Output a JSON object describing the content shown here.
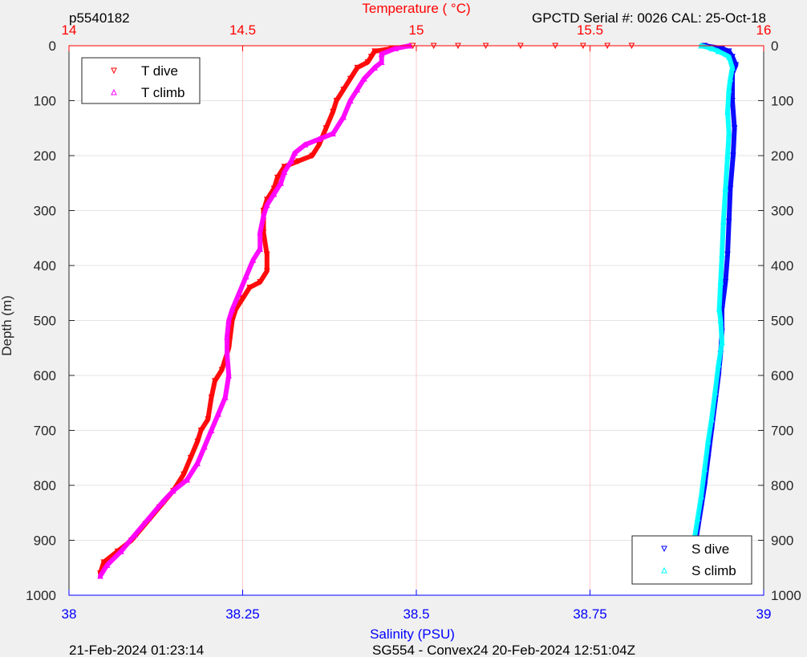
{
  "header": {
    "left_label": "p5540182",
    "right_label": "GPCTD Serial #: 0026 CAL: 25-Oct-18"
  },
  "footer": {
    "left_label": "21-Feb-2024 01:23:14",
    "center_label": "SG554 - Convex24 20-Feb-2024 12:51:04Z"
  },
  "colors": {
    "temperature_axis": "#ff0000",
    "salinity_axis": "#0000ff",
    "t_dive": "#ff0000",
    "t_climb": "#ff00ff",
    "s_dive": "#0000ff",
    "s_climb": "#00ffff",
    "grid": "#ffc8c8"
  },
  "chart_data": {
    "type": "scatter",
    "title": "",
    "ylabel": "Depth (m)",
    "ylim": [
      0,
      1000
    ],
    "y_inverted": true,
    "y_ticks": [
      "0",
      "100",
      "200",
      "300",
      "400",
      "500",
      "600",
      "700",
      "800",
      "900",
      "1000"
    ],
    "grid": true,
    "top_axis": {
      "label": "Temperature (    °C)",
      "range": [
        14,
        16
      ],
      "ticks": [
        "14",
        "14.5",
        "15",
        "15.5",
        "16"
      ]
    },
    "bottom_axis": {
      "label": "Salinity (PSU)",
      "range": [
        38,
        39
      ],
      "ticks": [
        "38",
        "38.25",
        "38.5",
        "38.75",
        "39"
      ]
    },
    "legend_top": {
      "position": "top-left",
      "entries": [
        "T dive",
        "T climb"
      ]
    },
    "legend_bottom": {
      "position": "bottom-right",
      "entries": [
        "S dive",
        "S climb"
      ]
    },
    "series": [
      {
        "name": "T dive",
        "axis": "top",
        "marker": "triangle-down",
        "color": "#ff0000",
        "points": [
          [
            14.99,
            0
          ],
          [
            15.05,
            0
          ],
          [
            15.12,
            0
          ],
          [
            15.2,
            0
          ],
          [
            15.3,
            0
          ],
          [
            15.4,
            0
          ],
          [
            15.48,
            0
          ],
          [
            15.55,
            0
          ],
          [
            15.62,
            0
          ],
          [
            14.93,
            5
          ],
          [
            14.88,
            10
          ],
          [
            14.87,
            20
          ],
          [
            14.86,
            30
          ],
          [
            14.83,
            40
          ],
          [
            14.81,
            60
          ],
          [
            14.79,
            80
          ],
          [
            14.77,
            100
          ],
          [
            14.76,
            120
          ],
          [
            14.74,
            150
          ],
          [
            14.72,
            180
          ],
          [
            14.7,
            200
          ],
          [
            14.66,
            210
          ],
          [
            14.62,
            220
          ],
          [
            14.6,
            240
          ],
          [
            14.59,
            260
          ],
          [
            14.57,
            280
          ],
          [
            14.56,
            300
          ],
          [
            14.56,
            340
          ],
          [
            14.57,
            380
          ],
          [
            14.57,
            410
          ],
          [
            14.55,
            430
          ],
          [
            14.52,
            440
          ],
          [
            14.5,
            460
          ],
          [
            14.48,
            480
          ],
          [
            14.47,
            500
          ],
          [
            14.46,
            550
          ],
          [
            14.44,
            590
          ],
          [
            14.42,
            610
          ],
          [
            14.41,
            640
          ],
          [
            14.4,
            680
          ],
          [
            14.38,
            700
          ],
          [
            14.37,
            720
          ],
          [
            14.35,
            750
          ],
          [
            14.33,
            780
          ],
          [
            14.3,
            810
          ],
          [
            14.26,
            840
          ],
          [
            14.22,
            870
          ],
          [
            14.18,
            900
          ],
          [
            14.14,
            920
          ],
          [
            14.1,
            940
          ],
          [
            14.09,
            960
          ]
        ]
      },
      {
        "name": "T climb",
        "axis": "top",
        "marker": "triangle-up",
        "color": "#ff00ff",
        "points": [
          [
            14.98,
            0
          ],
          [
            14.94,
            5
          ],
          [
            14.9,
            15
          ],
          [
            14.9,
            30
          ],
          [
            14.88,
            40
          ],
          [
            14.85,
            60
          ],
          [
            14.83,
            80
          ],
          [
            14.81,
            100
          ],
          [
            14.79,
            130
          ],
          [
            14.76,
            160
          ],
          [
            14.72,
            170
          ],
          [
            14.68,
            180
          ],
          [
            14.65,
            195
          ],
          [
            14.64,
            210
          ],
          [
            14.62,
            230
          ],
          [
            14.61,
            250
          ],
          [
            14.59,
            270
          ],
          [
            14.57,
            290
          ],
          [
            14.56,
            310
          ],
          [
            14.55,
            340
          ],
          [
            14.55,
            370
          ],
          [
            14.53,
            390
          ],
          [
            14.51,
            420
          ],
          [
            14.49,
            450
          ],
          [
            14.47,
            480
          ],
          [
            14.46,
            500
          ],
          [
            14.455,
            530
          ],
          [
            14.455,
            560
          ],
          [
            14.46,
            600
          ],
          [
            14.45,
            640
          ],
          [
            14.43,
            670
          ],
          [
            14.41,
            700
          ],
          [
            14.39,
            730
          ],
          [
            14.37,
            760
          ],
          [
            14.34,
            790
          ],
          [
            14.3,
            810
          ],
          [
            14.27,
            830
          ],
          [
            14.23,
            860
          ],
          [
            14.19,
            890
          ],
          [
            14.15,
            920
          ],
          [
            14.11,
            945
          ],
          [
            14.09,
            965
          ]
        ]
      },
      {
        "name": "S dive",
        "axis": "bottom",
        "marker": "triangle-down",
        "color": "#0000ff",
        "points": [
          [
            38.915,
            0
          ],
          [
            38.94,
            5
          ],
          [
            38.95,
            10
          ],
          [
            38.955,
            20
          ],
          [
            38.96,
            35
          ],
          [
            38.955,
            50
          ],
          [
            38.955,
            100
          ],
          [
            38.958,
            150
          ],
          [
            38.956,
            200
          ],
          [
            38.952,
            260
          ],
          [
            38.95,
            320
          ],
          [
            38.948,
            380
          ],
          [
            38.945,
            430
          ],
          [
            38.94,
            480
          ],
          [
            38.94,
            520
          ],
          [
            38.938,
            560
          ],
          [
            38.935,
            600
          ],
          [
            38.93,
            650
          ],
          [
            38.925,
            700
          ],
          [
            38.92,
            750
          ],
          [
            38.915,
            800
          ],
          [
            38.91,
            840
          ],
          [
            38.905,
            880
          ],
          [
            38.9,
            920
          ],
          [
            38.898,
            960
          ]
        ]
      },
      {
        "name": "S climb",
        "axis": "bottom",
        "marker": "triangle-up",
        "color": "#00ffff",
        "points": [
          [
            38.91,
            0
          ],
          [
            38.925,
            5
          ],
          [
            38.935,
            10
          ],
          [
            38.95,
            20
          ],
          [
            38.955,
            40
          ],
          [
            38.952,
            60
          ],
          [
            38.95,
            80
          ],
          [
            38.948,
            120
          ],
          [
            38.95,
            160
          ],
          [
            38.948,
            200
          ],
          [
            38.945,
            260
          ],
          [
            38.942,
            320
          ],
          [
            38.94,
            380
          ],
          [
            38.938,
            430
          ],
          [
            38.936,
            480
          ],
          [
            38.938,
            500
          ],
          [
            38.94,
            540
          ],
          [
            38.935,
            580
          ],
          [
            38.93,
            630
          ],
          [
            38.925,
            680
          ],
          [
            38.92,
            720
          ],
          [
            38.915,
            770
          ],
          [
            38.91,
            820
          ],
          [
            38.905,
            860
          ],
          [
            38.9,
            900
          ],
          [
            38.896,
            940
          ],
          [
            38.895,
            965
          ]
        ]
      }
    ]
  }
}
